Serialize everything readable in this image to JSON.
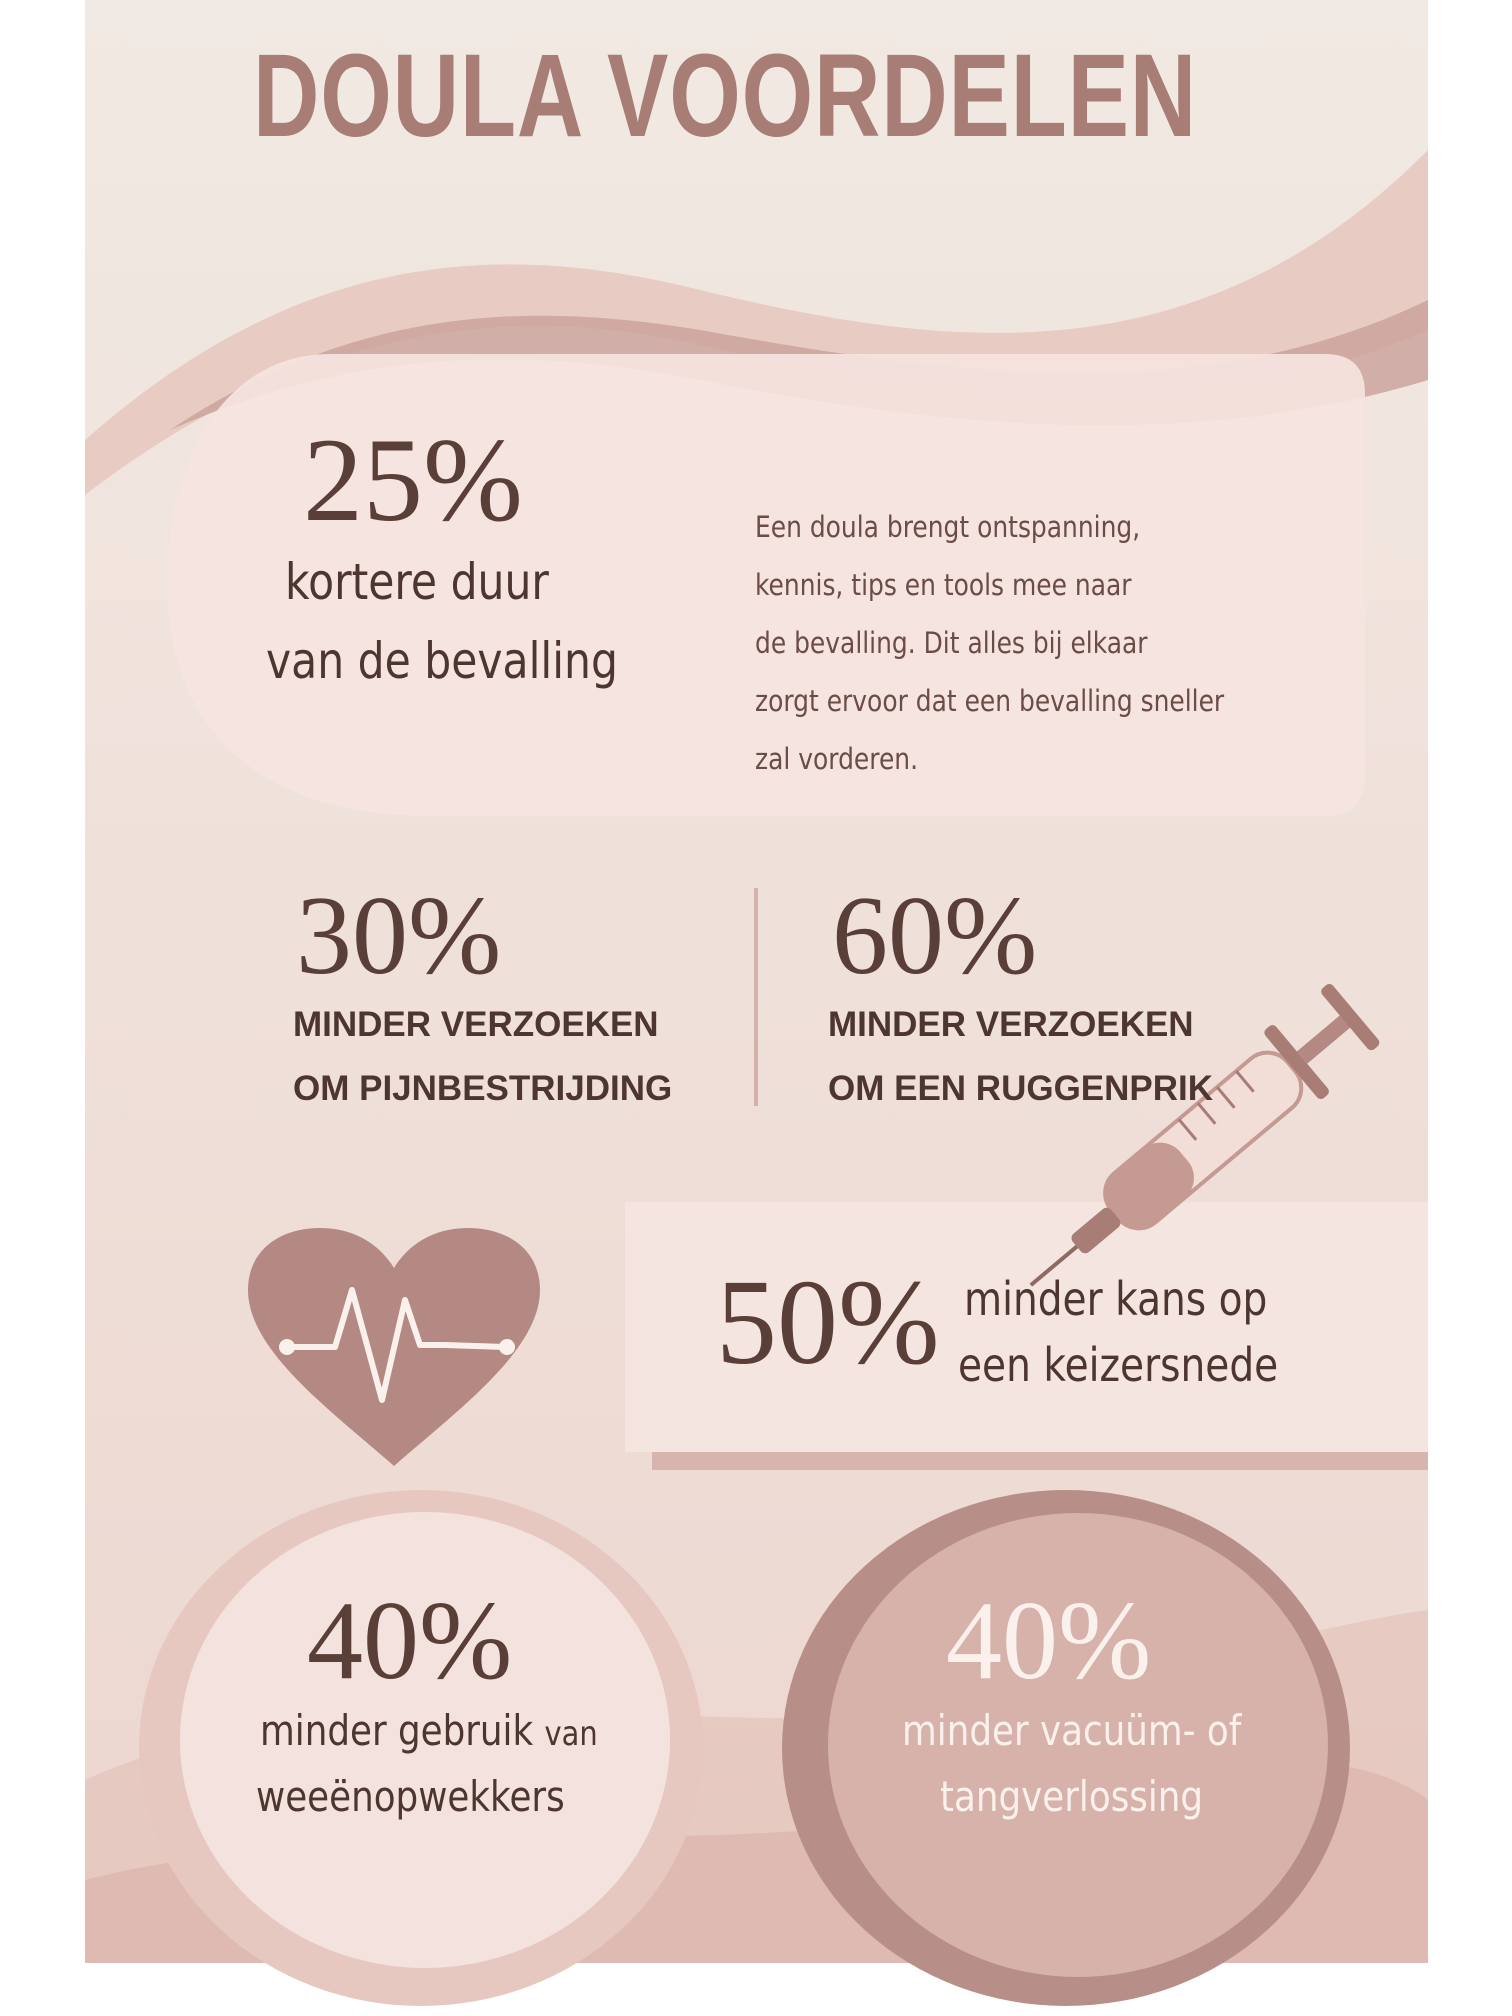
{
  "title": "DOULA VOORDELEN",
  "stat_duration": {
    "value": "25%",
    "line1": "kortere duur",
    "line2": "van de bevalling",
    "description": [
      "Een doula brengt ontspanning,",
      "kennis, tips en tools mee naar",
      "de bevalling. Dit alles bij elkaar",
      "zorgt ervoor dat een bevalling sneller",
      "zal vorderen."
    ]
  },
  "stat_pain": {
    "value": "30%",
    "line1": "MINDER VERZOEKEN",
    "line2": "OM PIJNBESTRIJDING"
  },
  "stat_epidural": {
    "value": "60%",
    "line1": "MINDER VERZOEKEN",
    "line2": "OM EEN RUGGENPRIK"
  },
  "stat_csection": {
    "value": "50%",
    "line1": "minder kans op",
    "line2": "een keizersnede"
  },
  "stat_induction": {
    "value": "40%",
    "line1a": "minder gebruik",
    "line1b": "van",
    "line2": "weeënopwekkers"
  },
  "stat_assisted": {
    "value": "40%",
    "line1": "minder vacuüm- of",
    "line2": "tangverlossing"
  },
  "icons": {
    "heart": "heartbeat-heart-icon",
    "syringe": "syringe-icon"
  },
  "colors": {
    "background": "#efe4de",
    "accent": "#a77d75",
    "text": "#4d3530",
    "heart": "#b48983"
  }
}
